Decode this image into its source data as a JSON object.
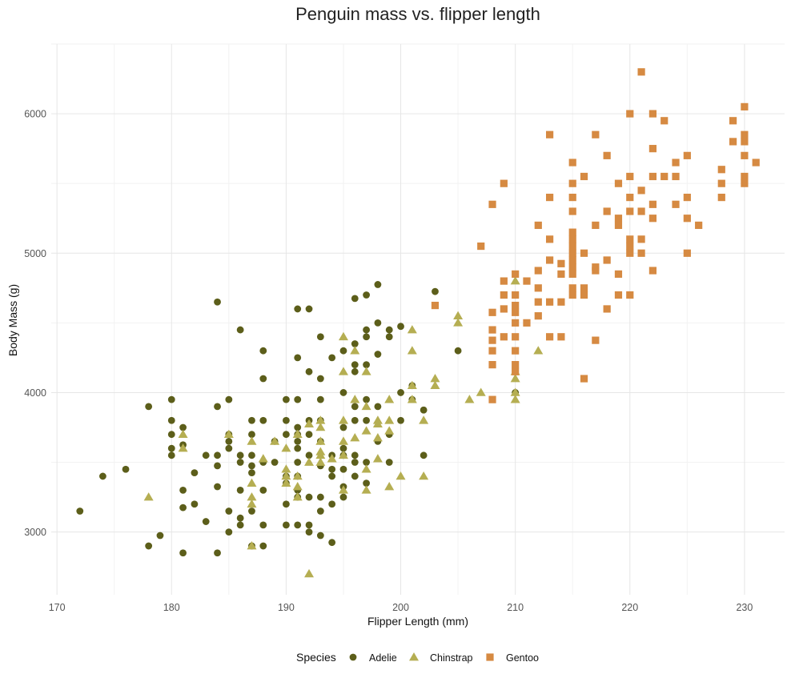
{
  "chart_data": {
    "type": "scatter",
    "title": "Penguin mass vs. flipper length",
    "xlabel": "Flipper Length (mm)",
    "ylabel": "Body Mass (g)",
    "xlim": [
      169.5,
      233.5
    ],
    "ylim": [
      2550,
      6500
    ],
    "x_ticks": [
      170,
      180,
      190,
      200,
      210,
      220,
      230
    ],
    "y_ticks": [
      3000,
      4000,
      5000,
      6000
    ],
    "grid": true,
    "legend": {
      "title": "Species",
      "position": "bottom"
    },
    "series": [
      {
        "name": "Adelie",
        "color": "#5c5e1a",
        "marker": "circle",
        "points": [
          [
            172,
            3150
          ],
          [
            174,
            3400
          ],
          [
            176,
            3450
          ],
          [
            178,
            3900
          ],
          [
            178,
            2900
          ],
          [
            179,
            2975
          ],
          [
            180,
            3950
          ],
          [
            180,
            3800
          ],
          [
            180,
            3700
          ],
          [
            180,
            3600
          ],
          [
            180,
            3550
          ],
          [
            181,
            3750
          ],
          [
            181,
            3625
          ],
          [
            181,
            3300
          ],
          [
            181,
            3175
          ],
          [
            181,
            2850
          ],
          [
            182,
            3425
          ],
          [
            182,
            3200
          ],
          [
            183,
            3550
          ],
          [
            183,
            3075
          ],
          [
            184,
            4650
          ],
          [
            184,
            3900
          ],
          [
            184,
            3550
          ],
          [
            184,
            3475
          ],
          [
            184,
            3325
          ],
          [
            184,
            2850
          ],
          [
            185,
            3950
          ],
          [
            185,
            3700
          ],
          [
            185,
            3650
          ],
          [
            185,
            3600
          ],
          [
            185,
            3150
          ],
          [
            185,
            3000
          ],
          [
            186,
            4450
          ],
          [
            186,
            3550
          ],
          [
            186,
            3500
          ],
          [
            186,
            3300
          ],
          [
            186,
            3100
          ],
          [
            186,
            3050
          ],
          [
            187,
            3800
          ],
          [
            187,
            3700
          ],
          [
            187,
            3550
          ],
          [
            187,
            3475
          ],
          [
            187,
            3425
          ],
          [
            187,
            3150
          ],
          [
            187,
            2900
          ],
          [
            188,
            4300
          ],
          [
            188,
            4100
          ],
          [
            188,
            3800
          ],
          [
            188,
            3500
          ],
          [
            188,
            3300
          ],
          [
            188,
            3050
          ],
          [
            188,
            2900
          ],
          [
            189,
            3650
          ],
          [
            189,
            3500
          ],
          [
            190,
            3950
          ],
          [
            190,
            3800
          ],
          [
            190,
            3700
          ],
          [
            190,
            3400
          ],
          [
            190,
            3350
          ],
          [
            190,
            3200
          ],
          [
            190,
            3050
          ],
          [
            191,
            4600
          ],
          [
            191,
            4250
          ],
          [
            191,
            3950
          ],
          [
            191,
            3750
          ],
          [
            191,
            3700
          ],
          [
            191,
            3650
          ],
          [
            191,
            3600
          ],
          [
            191,
            3500
          ],
          [
            191,
            3400
          ],
          [
            191,
            3300
          ],
          [
            191,
            3250
          ],
          [
            191,
            3050
          ],
          [
            192,
            4600
          ],
          [
            192,
            4150
          ],
          [
            192,
            3800
          ],
          [
            192,
            3700
          ],
          [
            192,
            3550
          ],
          [
            192,
            3250
          ],
          [
            192,
            3050
          ],
          [
            192,
            3000
          ],
          [
            193,
            4400
          ],
          [
            193,
            4100
          ],
          [
            193,
            3950
          ],
          [
            193,
            3800
          ],
          [
            193,
            3650
          ],
          [
            193,
            3475
          ],
          [
            193,
            3250
          ],
          [
            193,
            3150
          ],
          [
            193,
            2975
          ],
          [
            194,
            4250
          ],
          [
            194,
            3550
          ],
          [
            194,
            3450
          ],
          [
            194,
            3400
          ],
          [
            194,
            3200
          ],
          [
            194,
            2925
          ],
          [
            195,
            4300
          ],
          [
            195,
            4000
          ],
          [
            195,
            3750
          ],
          [
            195,
            3600
          ],
          [
            195,
            3550
          ],
          [
            195,
            3450
          ],
          [
            195,
            3325
          ],
          [
            195,
            3250
          ],
          [
            196,
            4675
          ],
          [
            196,
            4350
          ],
          [
            196,
            4200
          ],
          [
            196,
            4150
          ],
          [
            196,
            3900
          ],
          [
            196,
            3800
          ],
          [
            196,
            3550
          ],
          [
            196,
            3500
          ],
          [
            196,
            3400
          ],
          [
            197,
            4700
          ],
          [
            197,
            4450
          ],
          [
            197,
            4400
          ],
          [
            197,
            4200
          ],
          [
            197,
            3950
          ],
          [
            197,
            3800
          ],
          [
            197,
            3500
          ],
          [
            197,
            3350
          ],
          [
            198,
            4775
          ],
          [
            198,
            4500
          ],
          [
            198,
            4275
          ],
          [
            198,
            3900
          ],
          [
            198,
            3650
          ],
          [
            199,
            4450
          ],
          [
            199,
            4400
          ],
          [
            199,
            3700
          ],
          [
            199,
            3500
          ],
          [
            200,
            4475
          ],
          [
            200,
            4000
          ],
          [
            200,
            3800
          ],
          [
            201,
            4050
          ],
          [
            201,
            3950
          ],
          [
            202,
            3875
          ],
          [
            202,
            3550
          ],
          [
            203,
            4725
          ],
          [
            205,
            4300
          ],
          [
            210,
            4000
          ]
        ]
      },
      {
        "name": "Chinstrap",
        "color": "#b5ae52",
        "marker": "triangle",
        "points": [
          [
            178,
            3250
          ],
          [
            181,
            3700
          ],
          [
            181,
            3600
          ],
          [
            185,
            3700
          ],
          [
            187,
            3650
          ],
          [
            187,
            3350
          ],
          [
            187,
            3250
          ],
          [
            187,
            3200
          ],
          [
            187,
            2900
          ],
          [
            188,
            3525
          ],
          [
            189,
            3650
          ],
          [
            190,
            3600
          ],
          [
            190,
            3450
          ],
          [
            190,
            3400
          ],
          [
            190,
            3350
          ],
          [
            191,
            3700
          ],
          [
            191,
            3400
          ],
          [
            191,
            3325
          ],
          [
            191,
            3250
          ],
          [
            192,
            3775
          ],
          [
            192,
            3500
          ],
          [
            192,
            2700
          ],
          [
            193,
            3800
          ],
          [
            193,
            3750
          ],
          [
            193,
            3650
          ],
          [
            193,
            3575
          ],
          [
            193,
            3550
          ],
          [
            193,
            3500
          ],
          [
            194,
            3525
          ],
          [
            195,
            4400
          ],
          [
            195,
            4150
          ],
          [
            195,
            3800
          ],
          [
            195,
            3650
          ],
          [
            195,
            3550
          ],
          [
            195,
            3300
          ],
          [
            196,
            4300
          ],
          [
            196,
            3950
          ],
          [
            196,
            3675
          ],
          [
            197,
            4150
          ],
          [
            197,
            3900
          ],
          [
            197,
            3725
          ],
          [
            197,
            3450
          ],
          [
            197,
            3300
          ],
          [
            198,
            3800
          ],
          [
            198,
            3775
          ],
          [
            198,
            3675
          ],
          [
            198,
            3525
          ],
          [
            199,
            3950
          ],
          [
            199,
            3800
          ],
          [
            199,
            3725
          ],
          [
            199,
            3325
          ],
          [
            200,
            3400
          ],
          [
            201,
            4450
          ],
          [
            201,
            4300
          ],
          [
            201,
            4050
          ],
          [
            201,
            3950
          ],
          [
            202,
            3800
          ],
          [
            202,
            3400
          ],
          [
            203,
            4100
          ],
          [
            203,
            4050
          ],
          [
            205,
            4550
          ],
          [
            205,
            4500
          ],
          [
            206,
            3950
          ],
          [
            207,
            4000
          ],
          [
            210,
            4800
          ],
          [
            210,
            4150
          ],
          [
            210,
            4100
          ],
          [
            210,
            4000
          ],
          [
            210,
            3950
          ],
          [
            212,
            4300
          ]
        ]
      },
      {
        "name": "Gentoo",
        "color": "#d68a42",
        "marker": "square",
        "points": [
          [
            203,
            4625
          ],
          [
            207,
            5050
          ],
          [
            208,
            5350
          ],
          [
            208,
            4575
          ],
          [
            208,
            4450
          ],
          [
            208,
            4375
          ],
          [
            208,
            4300
          ],
          [
            208,
            4200
          ],
          [
            208,
            3950
          ],
          [
            209,
            5500
          ],
          [
            209,
            4800
          ],
          [
            209,
            4700
          ],
          [
            209,
            4600
          ],
          [
            209,
            4400
          ],
          [
            210,
            4850
          ],
          [
            210,
            4700
          ],
          [
            210,
            4625
          ],
          [
            210,
            4575
          ],
          [
            210,
            4500
          ],
          [
            210,
            4400
          ],
          [
            210,
            4300
          ],
          [
            210,
            4200
          ],
          [
            210,
            4150
          ],
          [
            211,
            4800
          ],
          [
            211,
            4500
          ],
          [
            212,
            5200
          ],
          [
            212,
            4875
          ],
          [
            212,
            4750
          ],
          [
            212,
            4650
          ],
          [
            212,
            4550
          ],
          [
            213,
            5850
          ],
          [
            213,
            5400
          ],
          [
            213,
            5100
          ],
          [
            213,
            4950
          ],
          [
            213,
            4650
          ],
          [
            213,
            4400
          ],
          [
            214,
            4925
          ],
          [
            214,
            4850
          ],
          [
            214,
            4650
          ],
          [
            214,
            4400
          ],
          [
            215,
            5650
          ],
          [
            215,
            5500
          ],
          [
            215,
            5400
          ],
          [
            215,
            5300
          ],
          [
            215,
            5150
          ],
          [
            215,
            5100
          ],
          [
            215,
            5050
          ],
          [
            215,
            5000
          ],
          [
            215,
            4950
          ],
          [
            215,
            4900
          ],
          [
            215,
            4850
          ],
          [
            215,
            4750
          ],
          [
            215,
            4700
          ],
          [
            216,
            5550
          ],
          [
            216,
            5000
          ],
          [
            216,
            4750
          ],
          [
            216,
            4700
          ],
          [
            216,
            4100
          ],
          [
            217,
            5850
          ],
          [
            217,
            5200
          ],
          [
            217,
            4900
          ],
          [
            217,
            4875
          ],
          [
            217,
            4375
          ],
          [
            218,
            5700
          ],
          [
            218,
            5300
          ],
          [
            218,
            4950
          ],
          [
            218,
            4600
          ],
          [
            219,
            5500
          ],
          [
            219,
            5250
          ],
          [
            219,
            5200
          ],
          [
            219,
            4850
          ],
          [
            219,
            4700
          ],
          [
            220,
            6000
          ],
          [
            220,
            5550
          ],
          [
            220,
            5400
          ],
          [
            220,
            5300
          ],
          [
            220,
            5100
          ],
          [
            220,
            5050
          ],
          [
            220,
            5000
          ],
          [
            220,
            4700
          ],
          [
            221,
            6300
          ],
          [
            221,
            5450
          ],
          [
            221,
            5300
          ],
          [
            221,
            5100
          ],
          [
            221,
            5000
          ],
          [
            222,
            6000
          ],
          [
            222,
            5750
          ],
          [
            222,
            5550
          ],
          [
            222,
            5350
          ],
          [
            222,
            5250
          ],
          [
            222,
            4875
          ],
          [
            223,
            5950
          ],
          [
            223,
            5550
          ],
          [
            224,
            5650
          ],
          [
            224,
            5550
          ],
          [
            224,
            5350
          ],
          [
            225,
            5700
          ],
          [
            225,
            5400
          ],
          [
            225,
            5250
          ],
          [
            225,
            5000
          ],
          [
            226,
            5200
          ],
          [
            228,
            5600
          ],
          [
            228,
            5500
          ],
          [
            228,
            5400
          ],
          [
            229,
            5950
          ],
          [
            229,
            5800
          ],
          [
            230,
            6050
          ],
          [
            230,
            5850
          ],
          [
            230,
            5800
          ],
          [
            230,
            5700
          ],
          [
            230,
            5550
          ],
          [
            230,
            5500
          ],
          [
            231,
            5650
          ]
        ]
      }
    ]
  }
}
